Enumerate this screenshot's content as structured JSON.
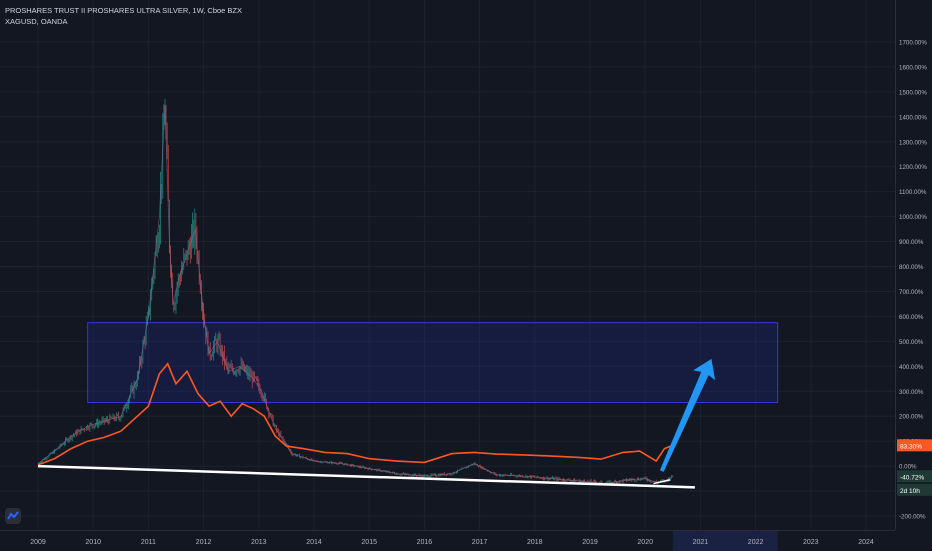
{
  "header": {
    "title": "PROSHARES TRUST II PROSHARES ULTRA SILVER, 1W, Cboe BZX",
    "compare": "XAGUSD, OANDA"
  },
  "colors": {
    "background": "#131722",
    "grid": "#1e222d",
    "up": "#26a69a",
    "down": "#ef5350",
    "xag_line": "#ff5722",
    "zone": "#1e2a8c",
    "arrow": "#2196f3",
    "trendline": "#ffffff"
  },
  "chart_data": {
    "type": "line",
    "ylabel": "",
    "xlabel": "",
    "y_unit": "%",
    "ylim": [
      -220,
      1780
    ],
    "xlim": [
      2009.0,
      2024.6
    ],
    "y_ticks": [
      "1700.00%",
      "1600.00%",
      "1500.00%",
      "1400.00%",
      "1300.00%",
      "1200.00%",
      "1100.00%",
      "1000.00%",
      "900.00%",
      "800.00%",
      "700.00%",
      "600.00%",
      "500.00%",
      "400.00%",
      "300.00%",
      "200.00%",
      "100.00%",
      "0.00%",
      "-100.00%",
      "-200.00%"
    ],
    "y_tick_values": [
      1700,
      1600,
      1500,
      1400,
      1300,
      1200,
      1100,
      1000,
      900,
      800,
      700,
      600,
      500,
      400,
      300,
      200,
      100,
      0,
      -100,
      -200
    ],
    "x_ticks": [
      "2009",
      "2010",
      "2011",
      "2012",
      "2013",
      "2014",
      "2015",
      "2016",
      "2017",
      "2018",
      "2019",
      "2020",
      "2021",
      "2022",
      "2023",
      "2024"
    ],
    "x_tick_values": [
      2009,
      2010,
      2011,
      2012,
      2013,
      2014,
      2015,
      2016,
      2017,
      2018,
      2019,
      2020,
      2021,
      2022,
      2023,
      2024
    ],
    "series": [
      {
        "name": "XAGUSD, OANDA",
        "x": [
          2009.0,
          2009.3,
          2009.6,
          2009.9,
          2010.2,
          2010.5,
          2010.8,
          2011.0,
          2011.2,
          2011.35,
          2011.5,
          2011.7,
          2011.9,
          2012.1,
          2012.3,
          2012.5,
          2012.7,
          2012.9,
          2013.1,
          2013.3,
          2013.5,
          2013.8,
          2014.2,
          2014.6,
          2015.0,
          2015.5,
          2016.0,
          2016.5,
          2016.9,
          2017.3,
          2017.8,
          2018.3,
          2018.8,
          2019.2,
          2019.6,
          2019.9,
          2020.2,
          2020.35,
          2020.5
        ],
        "y": [
          5,
          30,
          70,
          100,
          115,
          140,
          200,
          240,
          370,
          410,
          330,
          380,
          290,
          240,
          260,
          200,
          250,
          230,
          200,
          120,
          80,
          70,
          55,
          50,
          30,
          20,
          15,
          50,
          55,
          48,
          45,
          40,
          35,
          28,
          55,
          60,
          20,
          70,
          83.3
        ]
      },
      {
        "name": "PROSHARES TRUST II PROSHARES ULTRA SILVER",
        "x": [
          2009.0,
          2009.3,
          2009.6,
          2009.9,
          2010.2,
          2010.5,
          2010.8,
          2011.0,
          2011.1,
          2011.2,
          2011.3,
          2011.38,
          2011.45,
          2011.55,
          2011.7,
          2011.85,
          2012.0,
          2012.1,
          2012.25,
          2012.45,
          2012.65,
          2012.9,
          2013.05,
          2013.3,
          2013.6,
          2014.0,
          2014.5,
          2015.0,
          2015.5,
          2016.0,
          2016.5,
          2016.9,
          2017.3,
          2017.8,
          2018.3,
          2018.8,
          2019.3,
          2019.7,
          2020.0,
          2020.2,
          2020.35,
          2020.5
        ],
        "y": [
          10,
          60,
          120,
          160,
          180,
          200,
          350,
          600,
          800,
          1000,
          1450,
          900,
          650,
          750,
          850,
          950,
          600,
          450,
          500,
          380,
          400,
          350,
          300,
          150,
          50,
          20,
          10,
          -10,
          -30,
          -40,
          -30,
          10,
          -35,
          -40,
          -50,
          -60,
          -70,
          -55,
          -50,
          -65,
          -60,
          -40.72
        ]
      }
    ],
    "annotations": {
      "zone": {
        "x": [
          2009.9,
          2022.4
        ],
        "y": [
          255,
          575
        ]
      },
      "trendline": {
        "x": [
          2009.0,
          2020.9
        ],
        "y": [
          0,
          -85
        ]
      },
      "arrow": {
        "x": [
          2020.3,
          2021.2
        ],
        "y": [
          -20,
          430
        ]
      }
    },
    "last_values": {
      "xag": "83.30%",
      "proshares": "-40.72%",
      "countdown": "2d 10h"
    }
  }
}
